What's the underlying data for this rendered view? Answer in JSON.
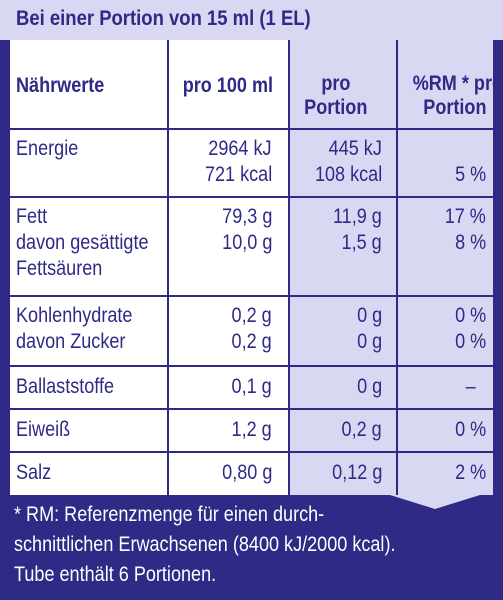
{
  "header": {
    "title": "Bei einer Portion von 15 ml (1 EL)"
  },
  "columns": {
    "name": "Nährwerte",
    "per100": "pro 100 ml",
    "perPortion_1": "pro",
    "perPortion_2": "Portion",
    "rm_1": "%RM * pro",
    "rm_2": "Portion"
  },
  "rows": {
    "energy": {
      "label": "Energie",
      "per100_kj": "2964 kJ",
      "per100_kcal": "721 kcal",
      "portion_kj": "445 kJ",
      "portion_kcal": "108 kcal",
      "rm": "5 %"
    },
    "fat": {
      "label": "Fett",
      "per100": "79,3 g",
      "portion": "11,9 g",
      "rm": "17 %"
    },
    "satfat": {
      "label_1": "davon gesättigte",
      "label_2": "Fettsäuren",
      "per100": "10,0 g",
      "portion": "1,5 g",
      "rm": "8 %"
    },
    "carbs": {
      "label": "Kohlenhydrate",
      "per100": "0,2 g",
      "portion": "0 g",
      "rm": "0 %"
    },
    "sugar": {
      "label": "davon Zucker",
      "per100": "0,2 g",
      "portion": "0 g",
      "rm": "0 %"
    },
    "fibre": {
      "label": "Ballaststoffe",
      "per100": "0,1 g",
      "portion": "0 g",
      "rm": "–"
    },
    "protein": {
      "label": "Eiweiß",
      "per100": "1,2 g",
      "portion": "0,2 g",
      "rm": "0 %"
    },
    "salt": {
      "label": "Salz",
      "per100": "0,80 g",
      "portion": "0,12 g",
      "rm": "2 %"
    }
  },
  "footer": {
    "line1": "* RM: Referenzmenge für einen durch-",
    "line2": "schnittlichen Erwachsenen (8400 kJ/2000 kcal).",
    "line3": "Tube enthält 6 Portionen."
  },
  "colors": {
    "brand": "#2e2a86",
    "shade": "#d9d8f3"
  }
}
